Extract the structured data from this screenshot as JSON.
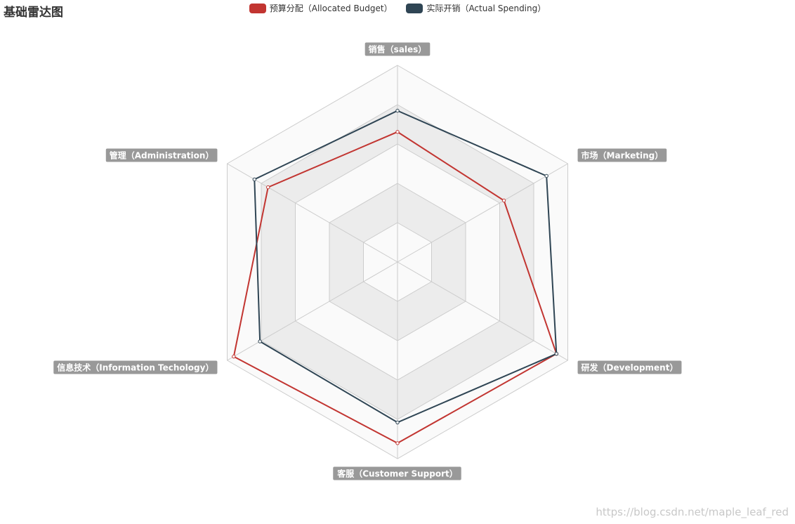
{
  "chart_data": {
    "type": "radar",
    "title": "基础雷达图",
    "indicators": [
      {
        "name": "销售（sales）",
        "max": 6500
      },
      {
        "name": "市场（Marketing）",
        "max": 16000
      },
      {
        "name": "研发（Development）",
        "max": 30000
      },
      {
        "name": "客服（Customer Support）",
        "max": 38000
      },
      {
        "name": "信息技术（Information Techology）",
        "max": 52000
      },
      {
        "name": "管理（Administration）",
        "max": 25000
      }
    ],
    "series": [
      {
        "name": "预算分配（Allocated Budget）",
        "color": "#c23531",
        "values": [
          4300,
          10000,
          28000,
          35000,
          50000,
          19000
        ]
      },
      {
        "name": "实际开销（Actual Spending）",
        "color": "#2f4554",
        "values": [
          5000,
          14000,
          28000,
          31000,
          42000,
          21000
        ]
      }
    ],
    "split_number": 5,
    "split_area_colors": [
      "#fafafa",
      "#ececec"
    ],
    "grid_line_color": "#cccccc",
    "axis_label_background": "#999999",
    "legend_position": "top-center"
  },
  "watermark": "https://blog.csdn.net/maple_leaf_red"
}
